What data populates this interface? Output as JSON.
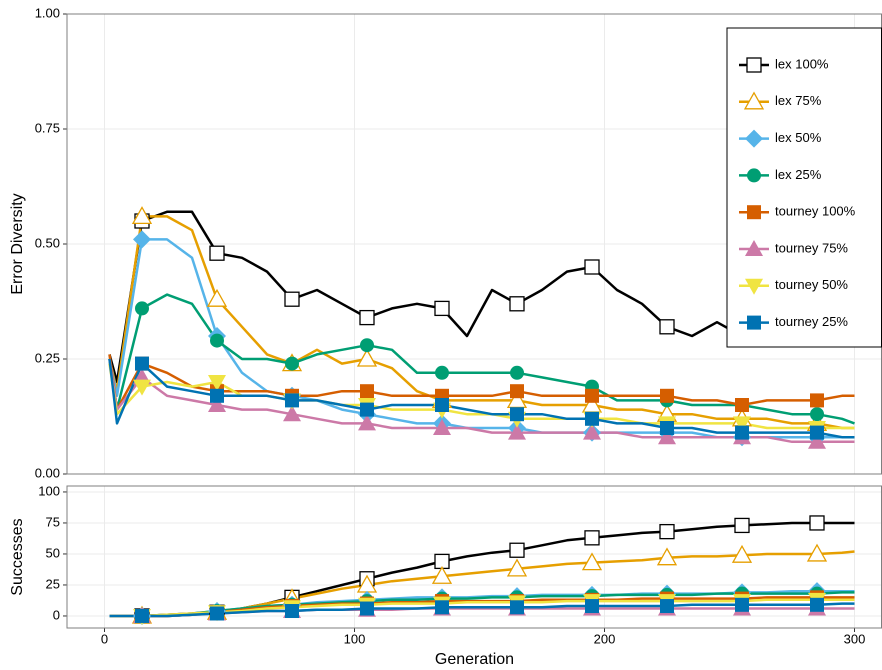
{
  "chart_data": [
    {
      "type": "line",
      "ylabel": "Error Diversity",
      "x": [
        2,
        5,
        15,
        25,
        35,
        45,
        55,
        65,
        75,
        85,
        95,
        105,
        115,
        125,
        135,
        145,
        155,
        165,
        175,
        185,
        195,
        205,
        215,
        225,
        235,
        245,
        255,
        265,
        275,
        285,
        295,
        300
      ],
      "xlim": [
        -15,
        311
      ],
      "xticks": [
        0,
        100,
        200,
        300
      ],
      "ylim": [
        0,
        1
      ],
      "yticks": [
        {
          "value": 0,
          "label": "0.00"
        },
        {
          "value": 0.25,
          "label": "0.25"
        },
        {
          "value": 0.5,
          "label": "0.50"
        },
        {
          "value": 0.75,
          "label": "0.75"
        },
        {
          "value": 1,
          "label": "1.00"
        }
      ],
      "grid": true,
      "legend": "top-right",
      "series": [
        {
          "name": "lex 100%",
          "color": "#000000",
          "marker": "open-square",
          "values": [
            0.26,
            0.2,
            0.55,
            0.57,
            0.57,
            0.48,
            0.47,
            0.44,
            0.38,
            0.4,
            0.37,
            0.34,
            0.36,
            0.37,
            0.36,
            0.3,
            0.4,
            0.37,
            0.4,
            0.44,
            0.45,
            0.4,
            0.37,
            0.32,
            0.3,
            0.33,
            0.3,
            0.3,
            0.3,
            0.31,
            0.32,
            0.31
          ]
        },
        {
          "name": "lex 75%",
          "color": "#E69F00",
          "marker": "open-triangle",
          "values": [
            0.25,
            0.18,
            0.56,
            0.56,
            0.53,
            0.38,
            0.32,
            0.26,
            0.24,
            0.27,
            0.24,
            0.25,
            0.23,
            0.18,
            0.16,
            0.16,
            0.16,
            0.16,
            0.15,
            0.15,
            0.15,
            0.14,
            0.14,
            0.13,
            0.13,
            0.12,
            0.12,
            0.12,
            0.11,
            0.11,
            0.1,
            0.1
          ]
        },
        {
          "name": "lex 50%",
          "color": "#56B4E9",
          "marker": "diamond",
          "values": [
            0.25,
            0.17,
            0.51,
            0.51,
            0.47,
            0.3,
            0.22,
            0.18,
            0.17,
            0.16,
            0.14,
            0.13,
            0.12,
            0.11,
            0.11,
            0.1,
            0.1,
            0.1,
            0.09,
            0.09,
            0.09,
            0.09,
            0.09,
            0.09,
            0.09,
            0.08,
            0.08,
            0.08,
            0.08,
            0.08,
            0.08,
            0.08
          ]
        },
        {
          "name": "lex 25%",
          "color": "#009E73",
          "marker": "circle",
          "values": [
            0.25,
            0.14,
            0.36,
            0.39,
            0.37,
            0.29,
            0.25,
            0.25,
            0.24,
            0.26,
            0.27,
            0.28,
            0.27,
            0.22,
            0.22,
            0.22,
            0.22,
            0.22,
            0.21,
            0.2,
            0.19,
            0.16,
            0.16,
            0.16,
            0.15,
            0.15,
            0.15,
            0.14,
            0.13,
            0.13,
            0.12,
            0.11
          ]
        },
        {
          "name": "tourney 100%",
          "color": "#D55E00",
          "marker": "square",
          "values": [
            0.26,
            0.14,
            0.24,
            0.22,
            0.19,
            0.18,
            0.18,
            0.18,
            0.17,
            0.17,
            0.18,
            0.18,
            0.17,
            0.17,
            0.17,
            0.17,
            0.17,
            0.18,
            0.17,
            0.17,
            0.17,
            0.17,
            0.17,
            0.17,
            0.16,
            0.16,
            0.15,
            0.16,
            0.16,
            0.16,
            0.17,
            0.17
          ]
        },
        {
          "name": "tourney 75%",
          "color": "#CC79A7",
          "marker": "triangle",
          "values": [
            0.25,
            0.14,
            0.21,
            0.17,
            0.16,
            0.15,
            0.14,
            0.14,
            0.13,
            0.12,
            0.11,
            0.11,
            0.1,
            0.1,
            0.1,
            0.1,
            0.09,
            0.09,
            0.09,
            0.09,
            0.09,
            0.09,
            0.08,
            0.08,
            0.08,
            0.08,
            0.08,
            0.08,
            0.07,
            0.07,
            0.07,
            0.07
          ]
        },
        {
          "name": "tourney 50%",
          "color": "#F0E442",
          "marker": "triangle-down",
          "values": [
            0.24,
            0.13,
            0.19,
            0.2,
            0.19,
            0.2,
            0.17,
            0.17,
            0.16,
            0.16,
            0.15,
            0.15,
            0.14,
            0.14,
            0.14,
            0.13,
            0.13,
            0.12,
            0.12,
            0.12,
            0.12,
            0.12,
            0.11,
            0.11,
            0.11,
            0.11,
            0.11,
            0.1,
            0.1,
            0.1,
            0.1,
            0.1
          ]
        },
        {
          "name": "tourney 25%",
          "color": "#0072B2",
          "marker": "square",
          "values": [
            0.25,
            0.11,
            0.24,
            0.19,
            0.18,
            0.17,
            0.17,
            0.17,
            0.16,
            0.16,
            0.15,
            0.14,
            0.15,
            0.15,
            0.15,
            0.14,
            0.13,
            0.13,
            0.13,
            0.12,
            0.12,
            0.11,
            0.11,
            0.1,
            0.1,
            0.09,
            0.09,
            0.09,
            0.09,
            0.09,
            0.08,
            0.08
          ]
        }
      ]
    },
    {
      "type": "line",
      "ylabel": "Successes",
      "xlabel": "Generation",
      "x": [
        2,
        5,
        15,
        25,
        35,
        45,
        55,
        65,
        75,
        85,
        95,
        105,
        115,
        125,
        135,
        145,
        155,
        165,
        175,
        185,
        195,
        205,
        215,
        225,
        235,
        245,
        255,
        265,
        275,
        285,
        295,
        300
      ],
      "xlim": [
        -15,
        311
      ],
      "xticks": [
        0,
        100,
        200,
        300
      ],
      "ylim": [
        -9.7,
        104.8
      ],
      "yticks": [
        0,
        25,
        50,
        75,
        100
      ],
      "grid": true,
      "series": [
        {
          "color": "#000000",
          "marker": "open-square",
          "values": [
            0,
            0,
            0,
            0,
            1,
            3,
            6,
            10,
            15,
            20,
            25,
            30,
            35,
            39,
            44,
            48,
            51,
            53,
            57,
            61,
            63,
            65,
            67,
            68,
            70,
            72,
            73,
            74,
            75,
            75,
            75,
            75
          ]
        },
        {
          "color": "#E69F00",
          "marker": "open-triangle",
          "values": [
            0,
            0,
            0,
            0,
            1,
            3,
            6,
            10,
            14,
            18,
            22,
            25,
            28,
            30,
            32,
            34,
            36,
            38,
            40,
            42,
            43,
            44,
            45,
            47,
            48,
            48,
            49,
            50,
            50,
            50,
            51,
            52
          ]
        },
        {
          "color": "#56B4E9",
          "marker": "diamond",
          "values": [
            0,
            0,
            0,
            1,
            2,
            4,
            6,
            8,
            9,
            11,
            12,
            13,
            14,
            15,
            15,
            15,
            16,
            16,
            17,
            17,
            17,
            17,
            18,
            18,
            18,
            18,
            19,
            19,
            20,
            20,
            20,
            20
          ]
        },
        {
          "color": "#009E73",
          "marker": "circle",
          "values": [
            0,
            0,
            0,
            1,
            2,
            4,
            6,
            8,
            9,
            10,
            11,
            12,
            13,
            13,
            14,
            14,
            15,
            15,
            16,
            16,
            16,
            17,
            17,
            17,
            17,
            18,
            18,
            18,
            18,
            18,
            19,
            19
          ]
        },
        {
          "color": "#D55E00",
          "marker": "square",
          "values": [
            0,
            0,
            0,
            1,
            2,
            3,
            5,
            7,
            8,
            9,
            10,
            10,
            11,
            11,
            12,
            12,
            12,
            12,
            13,
            13,
            13,
            13,
            14,
            14,
            14,
            14,
            14,
            15,
            15,
            15,
            15,
            15
          ]
        },
        {
          "color": "#CC79A7",
          "marker": "triangle",
          "values": [
            0,
            0,
            0,
            0,
            1,
            2,
            3,
            4,
            4,
            5,
            5,
            5,
            5,
            6,
            6,
            6,
            6,
            6,
            6,
            6,
            6,
            6,
            6,
            6,
            6,
            6,
            6,
            6,
            6,
            6,
            6,
            6
          ]
        },
        {
          "color": "#F0E442",
          "marker": "triangle-down",
          "values": [
            0,
            0,
            0,
            1,
            2,
            3,
            4,
            6,
            7,
            8,
            9,
            9,
            10,
            10,
            10,
            11,
            11,
            11,
            11,
            12,
            12,
            12,
            12,
            12,
            12,
            12,
            12,
            13,
            13,
            13,
            13,
            13
          ]
        },
        {
          "color": "#0072B2",
          "marker": "square",
          "values": [
            0,
            0,
            0,
            0,
            1,
            2,
            3,
            4,
            4,
            5,
            5,
            6,
            6,
            6,
            7,
            7,
            7,
            7,
            7,
            8,
            8,
            8,
            8,
            8,
            9,
            9,
            9,
            9,
            9,
            9,
            10,
            10
          ]
        }
      ]
    }
  ]
}
